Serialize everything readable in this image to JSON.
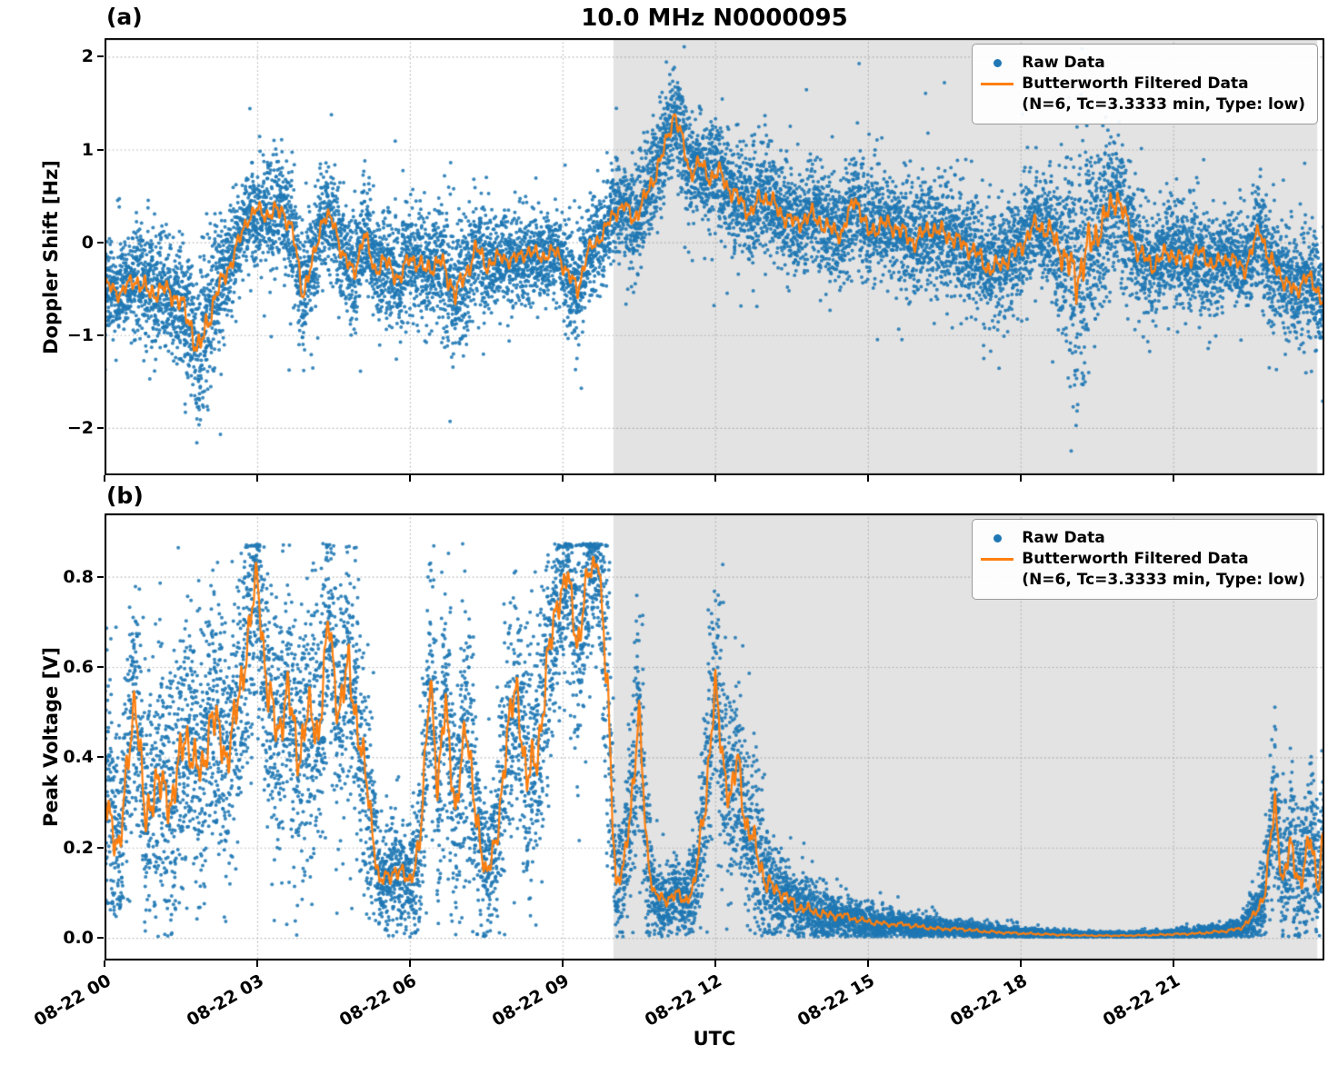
{
  "title": "10.0 MHz N0000095",
  "xlabel": "UTC",
  "x_axis": {
    "lim": [
      0,
      23.97
    ],
    "ticks": [
      0,
      3,
      6,
      9,
      12,
      15,
      18,
      21
    ],
    "tick_labels": [
      "08-22 00",
      "08-22 03",
      "08-22 06",
      "08-22 09",
      "08-22 12",
      "08-22 15",
      "08-22 18",
      "08-22 21"
    ]
  },
  "shade": {
    "start_hour": 10.0,
    "end_hour": 23.83,
    "color": "#e3e3e3"
  },
  "colors": {
    "raw": "#1f77b4",
    "filtered": "#ff7f0e",
    "grid": "#9a9a9a",
    "spine": "#000000"
  },
  "legend": {
    "raw_label": "Raw Data",
    "filtered_label_line1": "Butterworth Filtered Data",
    "filtered_label_line2": "(N=6, Tc=3.3333 min, Type: low)"
  },
  "panels": [
    {
      "label": "(a)",
      "ylabel": "Doppler Shift [Hz]",
      "yticks": [
        2,
        1,
        0,
        -1,
        -2
      ],
      "ytick_labels": [
        "2",
        "1",
        "0",
        "−1",
        "−2"
      ]
    },
    {
      "label": "(b)",
      "ylabel": "Peak Voltage [V]",
      "yticks": [
        0.8,
        0.6,
        0.4,
        0.2,
        0.0
      ],
      "ytick_labels": [
        "0.8",
        "0.6",
        "0.4",
        "0.2",
        "0.0"
      ]
    }
  ],
  "chart_data": [
    {
      "type": "scatter",
      "title": "10.0 MHz N0000095",
      "panel": "(a)",
      "xlabel": "UTC",
      "ylabel": "Doppler Shift [Hz]",
      "xlim_hours": [
        0,
        23.97
      ],
      "ylim": [
        -2.51,
        2.2
      ],
      "yticks": [
        2,
        1,
        0,
        -1,
        -2
      ],
      "xtick_hours": [
        0,
        3,
        6,
        9,
        12,
        15,
        18,
        21
      ],
      "xtick_labels": [
        "08-22 00",
        "08-22 03",
        "08-22 06",
        "08-22 09",
        "08-22 12",
        "08-22 15",
        "08-22 18",
        "08-22 21"
      ],
      "legend_entries": [
        "Raw Data",
        "Butterworth Filtered Data (N=6, Tc=3.3333 min, Type: low)"
      ],
      "shaded_region_hours": [
        10.0,
        23.83
      ],
      "series_note": "Raw Data is a dense scatter distributed about the filtered curve with local std raw_noise_std; filtered_values sampled at x_hours (UTC hours after 08-22 00).",
      "x_hours": [
        0.0,
        0.3,
        0.6,
        0.9,
        1.2,
        1.5,
        1.7,
        1.85,
        2.0,
        2.2,
        2.5,
        2.8,
        3.0,
        3.2,
        3.5,
        3.7,
        3.9,
        4.1,
        4.3,
        4.5,
        4.7,
        4.9,
        5.1,
        5.3,
        5.5,
        5.8,
        6.0,
        6.3,
        6.6,
        6.9,
        7.1,
        7.3,
        7.5,
        7.8,
        8.0,
        8.3,
        8.6,
        8.9,
        9.1,
        9.3,
        9.5,
        9.8,
        10.0,
        10.2,
        10.4,
        10.6,
        10.8,
        11.0,
        11.2,
        11.35,
        11.5,
        11.7,
        11.9,
        12.1,
        12.3,
        12.5,
        12.7,
        12.9,
        13.1,
        13.3,
        13.6,
        13.9,
        14.2,
        14.5,
        14.75,
        15.0,
        15.3,
        15.6,
        15.9,
        16.2,
        16.5,
        16.8,
        17.1,
        17.4,
        17.7,
        18.0,
        18.3,
        18.6,
        18.9,
        19.1,
        19.3,
        19.5,
        19.7,
        19.9,
        20.1,
        20.3,
        20.6,
        20.9,
        21.2,
        21.5,
        21.8,
        22.1,
        22.4,
        22.7,
        22.9,
        23.1,
        23.4,
        23.6,
        23.8,
        24.0
      ],
      "filtered_values": [
        -0.45,
        -0.55,
        -0.4,
        -0.55,
        -0.5,
        -0.65,
        -0.9,
        -1.2,
        -0.9,
        -0.55,
        -0.2,
        0.25,
        0.35,
        0.3,
        0.35,
        0.1,
        -0.55,
        -0.2,
        0.3,
        0.2,
        -0.15,
        -0.35,
        0.1,
        -0.3,
        -0.2,
        -0.4,
        -0.15,
        -0.3,
        -0.2,
        -0.55,
        -0.35,
        -0.05,
        -0.25,
        -0.15,
        -0.2,
        -0.1,
        -0.15,
        -0.1,
        -0.35,
        -0.5,
        -0.1,
        0.1,
        0.3,
        0.4,
        0.25,
        0.45,
        0.7,
        1.0,
        1.4,
        1.1,
        0.75,
        0.85,
        0.7,
        0.75,
        0.55,
        0.45,
        0.3,
        0.5,
        0.45,
        0.3,
        0.2,
        0.3,
        0.15,
        0.1,
        0.5,
        0.1,
        0.2,
        0.15,
        0.0,
        0.15,
        0.1,
        0.0,
        -0.1,
        -0.3,
        -0.2,
        -0.05,
        0.2,
        0.1,
        -0.2,
        -0.4,
        -0.1,
        0.1,
        0.3,
        0.5,
        0.2,
        -0.1,
        -0.25,
        -0.1,
        -0.2,
        -0.1,
        -0.25,
        -0.15,
        -0.3,
        0.15,
        -0.2,
        -0.35,
        -0.55,
        -0.35,
        -0.5,
        -0.65
      ],
      "raw_noise_std": [
        0.25,
        0.25,
        0.3,
        0.35,
        0.3,
        0.35,
        0.42,
        0.55,
        0.45,
        0.35,
        0.3,
        0.25,
        0.25,
        0.3,
        0.3,
        0.3,
        0.35,
        0.3,
        0.3,
        0.3,
        0.3,
        0.3,
        0.3,
        0.3,
        0.3,
        0.3,
        0.3,
        0.3,
        0.35,
        0.4,
        0.35,
        0.3,
        0.3,
        0.25,
        0.25,
        0.25,
        0.25,
        0.25,
        0.3,
        0.3,
        0.25,
        0.25,
        0.25,
        0.25,
        0.3,
        0.3,
        0.3,
        0.3,
        0.25,
        0.3,
        0.3,
        0.3,
        0.3,
        0.3,
        0.3,
        0.3,
        0.3,
        0.3,
        0.3,
        0.3,
        0.3,
        0.3,
        0.3,
        0.3,
        0.3,
        0.3,
        0.3,
        0.3,
        0.3,
        0.3,
        0.3,
        0.3,
        0.3,
        0.3,
        0.3,
        0.3,
        0.3,
        0.35,
        0.55,
        0.75,
        0.7,
        0.55,
        0.5,
        0.42,
        0.35,
        0.3,
        0.3,
        0.3,
        0.3,
        0.3,
        0.25,
        0.25,
        0.25,
        0.3,
        0.3,
        0.3,
        0.3,
        0.3,
        0.3,
        0.3
      ]
    },
    {
      "type": "scatter",
      "panel": "(b)",
      "xlabel": "UTC",
      "ylabel": "Peak Voltage [V]",
      "xlim_hours": [
        0,
        23.97
      ],
      "ylim": [
        -0.05,
        0.94
      ],
      "yticks": [
        0.8,
        0.6,
        0.4,
        0.2,
        0.0
      ],
      "xtick_hours": [
        0,
        3,
        6,
        9,
        12,
        15,
        18,
        21
      ],
      "xtick_labels": [
        "08-22 00",
        "08-22 03",
        "08-22 06",
        "08-22 09",
        "08-22 12",
        "08-22 15",
        "08-22 18",
        "08-22 21"
      ],
      "legend_entries": [
        "Raw Data",
        "Butterworth Filtered Data (N=6, Tc=3.3333 min, Type: low)"
      ],
      "shaded_region_hours": [
        10.0,
        23.83
      ],
      "clip": [
        0.002,
        0.873
      ],
      "series_note": "Raw Data is a dense scatter distributed about the filtered curve with local std raw_noise_std; filtered_values sampled at x_hours (UTC hours after 08-22 00).",
      "x_hours": [
        0.0,
        0.3,
        0.6,
        0.8,
        1.0,
        1.3,
        1.6,
        1.9,
        2.1,
        2.4,
        2.6,
        2.8,
        3.0,
        3.2,
        3.4,
        3.6,
        3.8,
        4.0,
        4.2,
        4.4,
        4.6,
        4.8,
        5.0,
        5.2,
        5.4,
        5.7,
        6.0,
        6.2,
        6.4,
        6.55,
        6.7,
        6.9,
        7.1,
        7.3,
        7.5,
        7.7,
        7.9,
        8.1,
        8.3,
        8.5,
        8.7,
        8.9,
        9.1,
        9.3,
        9.5,
        9.7,
        9.9,
        10.05,
        10.2,
        10.35,
        10.5,
        10.65,
        10.8,
        11.0,
        11.2,
        11.4,
        11.6,
        11.8,
        12.0,
        12.15,
        12.3,
        12.45,
        12.6,
        12.8,
        13.0,
        13.3,
        13.6,
        13.9,
        14.2,
        14.5,
        14.8,
        15.1,
        15.4,
        15.7,
        16.0,
        16.4,
        16.8,
        17.2,
        17.6,
        18.0,
        18.5,
        19.0,
        19.5,
        20.0,
        20.5,
        21.0,
        21.5,
        22.0,
        22.3,
        22.6,
        22.8,
        23.0,
        23.15,
        23.3,
        23.5,
        23.7,
        23.85,
        23.97
      ],
      "filtered_values": [
        0.3,
        0.2,
        0.55,
        0.25,
        0.35,
        0.3,
        0.45,
        0.35,
        0.5,
        0.4,
        0.5,
        0.65,
        0.8,
        0.55,
        0.45,
        0.55,
        0.4,
        0.5,
        0.45,
        0.7,
        0.5,
        0.6,
        0.45,
        0.3,
        0.12,
        0.15,
        0.13,
        0.2,
        0.6,
        0.3,
        0.55,
        0.25,
        0.5,
        0.25,
        0.15,
        0.2,
        0.45,
        0.55,
        0.35,
        0.4,
        0.6,
        0.75,
        0.8,
        0.65,
        0.8,
        0.85,
        0.5,
        0.12,
        0.15,
        0.3,
        0.5,
        0.2,
        0.1,
        0.08,
        0.1,
        0.08,
        0.12,
        0.3,
        0.55,
        0.4,
        0.3,
        0.4,
        0.25,
        0.2,
        0.12,
        0.1,
        0.07,
        0.06,
        0.05,
        0.05,
        0.04,
        0.035,
        0.03,
        0.03,
        0.025,
        0.02,
        0.02,
        0.015,
        0.012,
        0.01,
        0.008,
        0.006,
        0.005,
        0.005,
        0.006,
        0.008,
        0.01,
        0.015,
        0.02,
        0.05,
        0.1,
        0.3,
        0.12,
        0.2,
        0.12,
        0.22,
        0.12,
        0.25
      ],
      "raw_noise_std": [
        0.15,
        0.12,
        0.15,
        0.15,
        0.15,
        0.15,
        0.15,
        0.15,
        0.15,
        0.15,
        0.15,
        0.15,
        0.12,
        0.15,
        0.15,
        0.15,
        0.15,
        0.15,
        0.15,
        0.13,
        0.15,
        0.15,
        0.15,
        0.12,
        0.05,
        0.06,
        0.06,
        0.1,
        0.13,
        0.15,
        0.15,
        0.12,
        0.15,
        0.12,
        0.08,
        0.1,
        0.15,
        0.13,
        0.15,
        0.15,
        0.15,
        0.12,
        0.1,
        0.15,
        0.1,
        0.08,
        0.2,
        0.06,
        0.07,
        0.12,
        0.12,
        0.1,
        0.05,
        0.04,
        0.05,
        0.04,
        0.06,
        0.12,
        0.13,
        0.12,
        0.12,
        0.12,
        0.1,
        0.1,
        0.07,
        0.05,
        0.04,
        0.035,
        0.03,
        0.025,
        0.02,
        0.02,
        0.015,
        0.015,
        0.015,
        0.012,
        0.01,
        0.01,
        0.008,
        0.007,
        0.006,
        0.005,
        0.004,
        0.004,
        0.005,
        0.006,
        0.007,
        0.01,
        0.012,
        0.03,
        0.05,
        0.1,
        0.07,
        0.1,
        0.08,
        0.1,
        0.08,
        0.1
      ]
    }
  ]
}
